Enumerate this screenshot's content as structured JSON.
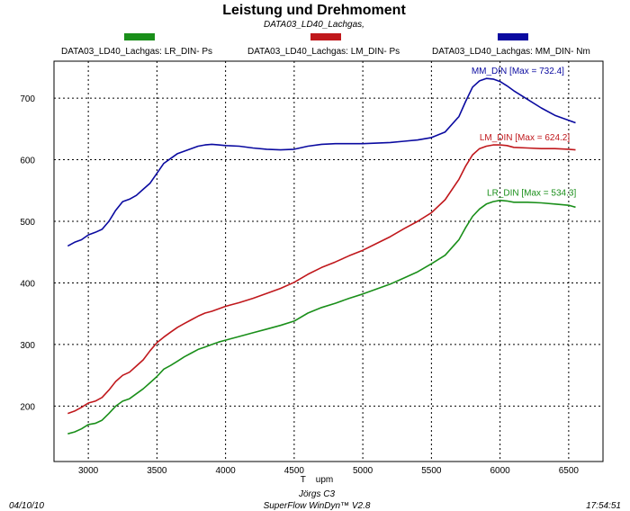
{
  "chart_data": {
    "type": "line",
    "title": "Leistung und Drehmoment",
    "subtitle": "DATA03_LD40_Lachgas,",
    "xlabel": "T    upm",
    "ylabel": "",
    "xlim": [
      2750,
      6750
    ],
    "ylim": [
      110,
      760
    ],
    "x_ticks": [
      3000,
      3500,
      4000,
      4500,
      5000,
      5500,
      6000,
      6500
    ],
    "y_ticks": [
      200,
      300,
      400,
      500,
      600,
      700
    ],
    "grid": true,
    "legend": [
      {
        "label": "DATA03_LD40_Lachgas: LR_DIN-  Ps",
        "color": "#1a8f1a"
      },
      {
        "label": "DATA03_LD40_Lachgas: LM_DIN-  Ps",
        "color": "#c0181c"
      },
      {
        "label": "DATA03_LD40_Lachgas: MM_DIN-  Nm",
        "color": "#0a0aa0"
      }
    ],
    "series": [
      {
        "name": "LR_DIN",
        "color": "#1a8f1a",
        "annotation": "LR_DIN [Max = 534.3]",
        "x": [
          2850,
          2900,
          2950,
          3000,
          3050,
          3100,
          3150,
          3200,
          3250,
          3300,
          3350,
          3400,
          3450,
          3500,
          3550,
          3600,
          3650,
          3700,
          3750,
          3800,
          3850,
          3900,
          3950,
          4000,
          4100,
          4200,
          4300,
          4400,
          4500,
          4600,
          4700,
          4800,
          4900,
          5000,
          5100,
          5200,
          5300,
          5400,
          5500,
          5600,
          5700,
          5750,
          5800,
          5850,
          5900,
          5950,
          6000,
          6050,
          6100,
          6200,
          6300,
          6400,
          6500,
          6550
        ],
        "values": [
          155,
          158,
          163,
          170,
          172,
          177,
          188,
          200,
          208,
          212,
          220,
          228,
          238,
          248,
          260,
          266,
          273,
          280,
          286,
          292,
          296,
          300,
          304,
          307,
          313,
          319,
          325,
          331,
          338,
          351,
          360,
          367,
          375,
          382,
          390,
          398,
          408,
          418,
          431,
          445,
          470,
          490,
          508,
          520,
          528,
          532,
          534,
          533,
          531,
          531,
          530,
          528,
          526,
          523
        ]
      },
      {
        "name": "LM_DIN",
        "color": "#c0181c",
        "annotation": "LM_DIN [Max = 624.2]",
        "x": [
          2850,
          2900,
          2950,
          3000,
          3050,
          3100,
          3150,
          3200,
          3250,
          3300,
          3350,
          3400,
          3450,
          3500,
          3550,
          3600,
          3650,
          3700,
          3750,
          3800,
          3850,
          3900,
          3950,
          4000,
          4100,
          4200,
          4300,
          4400,
          4500,
          4600,
          4700,
          4800,
          4900,
          5000,
          5100,
          5200,
          5300,
          5400,
          5500,
          5600,
          5700,
          5750,
          5800,
          5850,
          5900,
          5950,
          6000,
          6050,
          6100,
          6200,
          6300,
          6400,
          6500,
          6550
        ],
        "values": [
          188,
          192,
          198,
          205,
          208,
          214,
          226,
          240,
          250,
          255,
          265,
          275,
          290,
          303,
          312,
          320,
          328,
          334,
          340,
          346,
          351,
          354,
          358,
          362,
          368,
          375,
          383,
          391,
          401,
          414,
          425,
          434,
          444,
          453,
          464,
          475,
          488,
          500,
          514,
          535,
          568,
          590,
          608,
          618,
          622,
          624,
          624,
          623,
          620,
          619,
          618,
          618,
          617,
          616
        ]
      },
      {
        "name": "MM_DIN",
        "color": "#0a0aa0",
        "annotation": "MM_DIN [Max = 732.4]",
        "x": [
          2850,
          2900,
          2950,
          3000,
          3050,
          3100,
          3150,
          3200,
          3250,
          3300,
          3350,
          3400,
          3450,
          3500,
          3550,
          3600,
          3650,
          3700,
          3750,
          3800,
          3850,
          3900,
          3950,
          4000,
          4100,
          4200,
          4300,
          4400,
          4500,
          4600,
          4700,
          4800,
          4900,
          5000,
          5100,
          5200,
          5300,
          5400,
          5500,
          5600,
          5700,
          5750,
          5800,
          5850,
          5900,
          5950,
          6000,
          6050,
          6100,
          6200,
          6300,
          6400,
          6500,
          6550
        ],
        "values": [
          460,
          466,
          470,
          478,
          482,
          487,
          500,
          518,
          532,
          536,
          542,
          552,
          562,
          578,
          594,
          602,
          610,
          614,
          618,
          622,
          624,
          625,
          624,
          623,
          622,
          619,
          617,
          616,
          617,
          622,
          625,
          626,
          626,
          626,
          627,
          628,
          630,
          632,
          636,
          645,
          670,
          695,
          718,
          728,
          732,
          731,
          727,
          720,
          712,
          698,
          684,
          672,
          664,
          660
        ]
      }
    ]
  },
  "footer": {
    "date": "04/10/10",
    "user": "Jörgs C3",
    "software": "SuperFlow WinDyn™ V2.8",
    "time": "17:54:51"
  }
}
